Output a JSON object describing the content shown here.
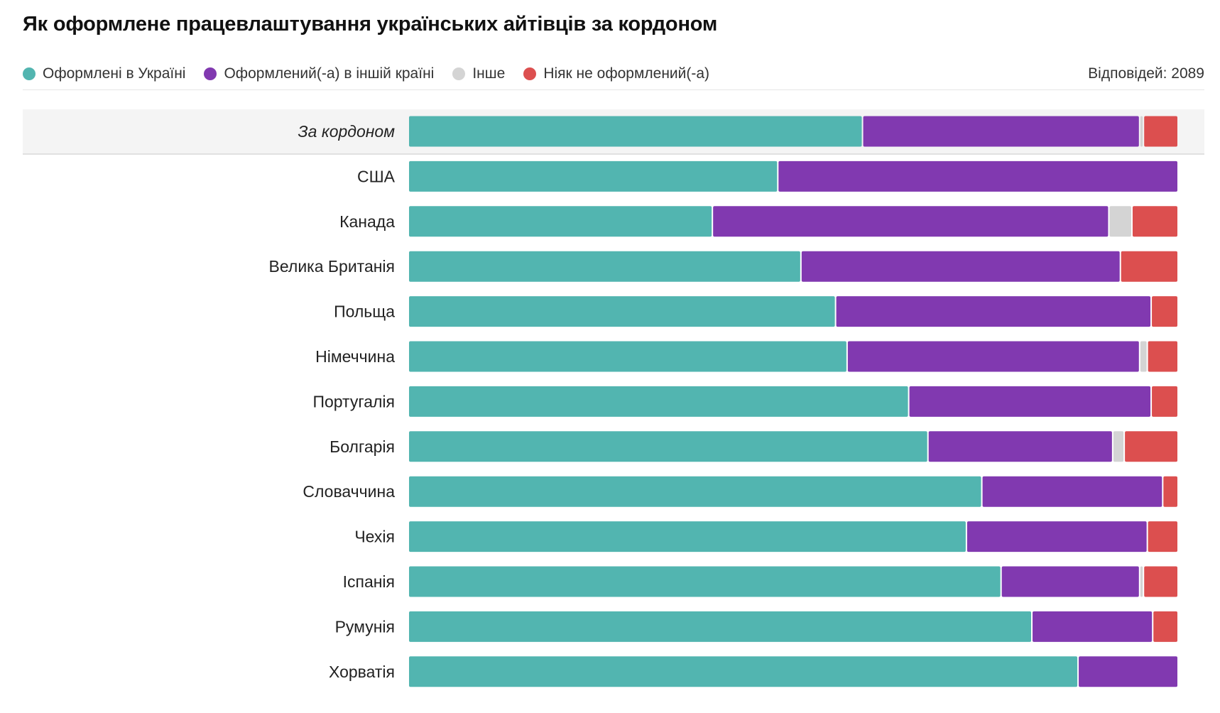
{
  "title": "Як оформлене працевлаштування українських айтівців за кордоном",
  "legend": {
    "items": [
      {
        "label": "Оформлені в Україні",
        "color": "#52b5b0"
      },
      {
        "label": "Оформлений(-а) в іншій країні",
        "color": "#8139b0"
      },
      {
        "label": "Інше",
        "color": "#d4d4d4"
      },
      {
        "label": "Ніяк не оформлений(-а)",
        "color": "#dc4f4f"
      }
    ]
  },
  "responses_label": "Відповідей: 2089",
  "chart_data": {
    "type": "bar",
    "orientation": "horizontal",
    "stacked": true,
    "normalized_percent": true,
    "title": "Як оформлене працевлаштування українських айтівців за кордоном",
    "legend_position": "top-left",
    "categories": [
      "За кордоном",
      "США",
      "Канада",
      "Велика Британія",
      "Польща",
      "Німеччина",
      "Португалія",
      "Болгарія",
      "Словаччина",
      "Чехія",
      "Іспанія",
      "Румунія",
      "Хорватія"
    ],
    "highlighted_category": "За кордоном",
    "series": [
      {
        "name": "Оформлені в Україні",
        "color": "#52b5b0",
        "values": [
          59,
          48,
          39.5,
          51,
          55.5,
          57,
          65,
          67.5,
          74.5,
          72.5,
          77,
          81,
          87
        ]
      },
      {
        "name": "Оформлений(-а) в іншій країні",
        "color": "#8139b0",
        "values": [
          36,
          52,
          51.5,
          41.5,
          41,
          38,
          31.5,
          24,
          23.5,
          23.5,
          18,
          15.7,
          13
        ]
      },
      {
        "name": "Інше",
        "color": "#d4d4d4",
        "values": [
          0.5,
          0,
          3,
          0,
          0,
          1,
          0,
          1.5,
          0,
          0,
          0.5,
          0,
          0
        ]
      },
      {
        "name": "Ніяк не оформлений(-а)",
        "color": "#dc4f4f",
        "values": [
          4.5,
          0,
          6,
          7.5,
          3.5,
          4,
          3.5,
          7,
          2,
          4,
          4.5,
          3.3,
          0
        ]
      }
    ]
  }
}
